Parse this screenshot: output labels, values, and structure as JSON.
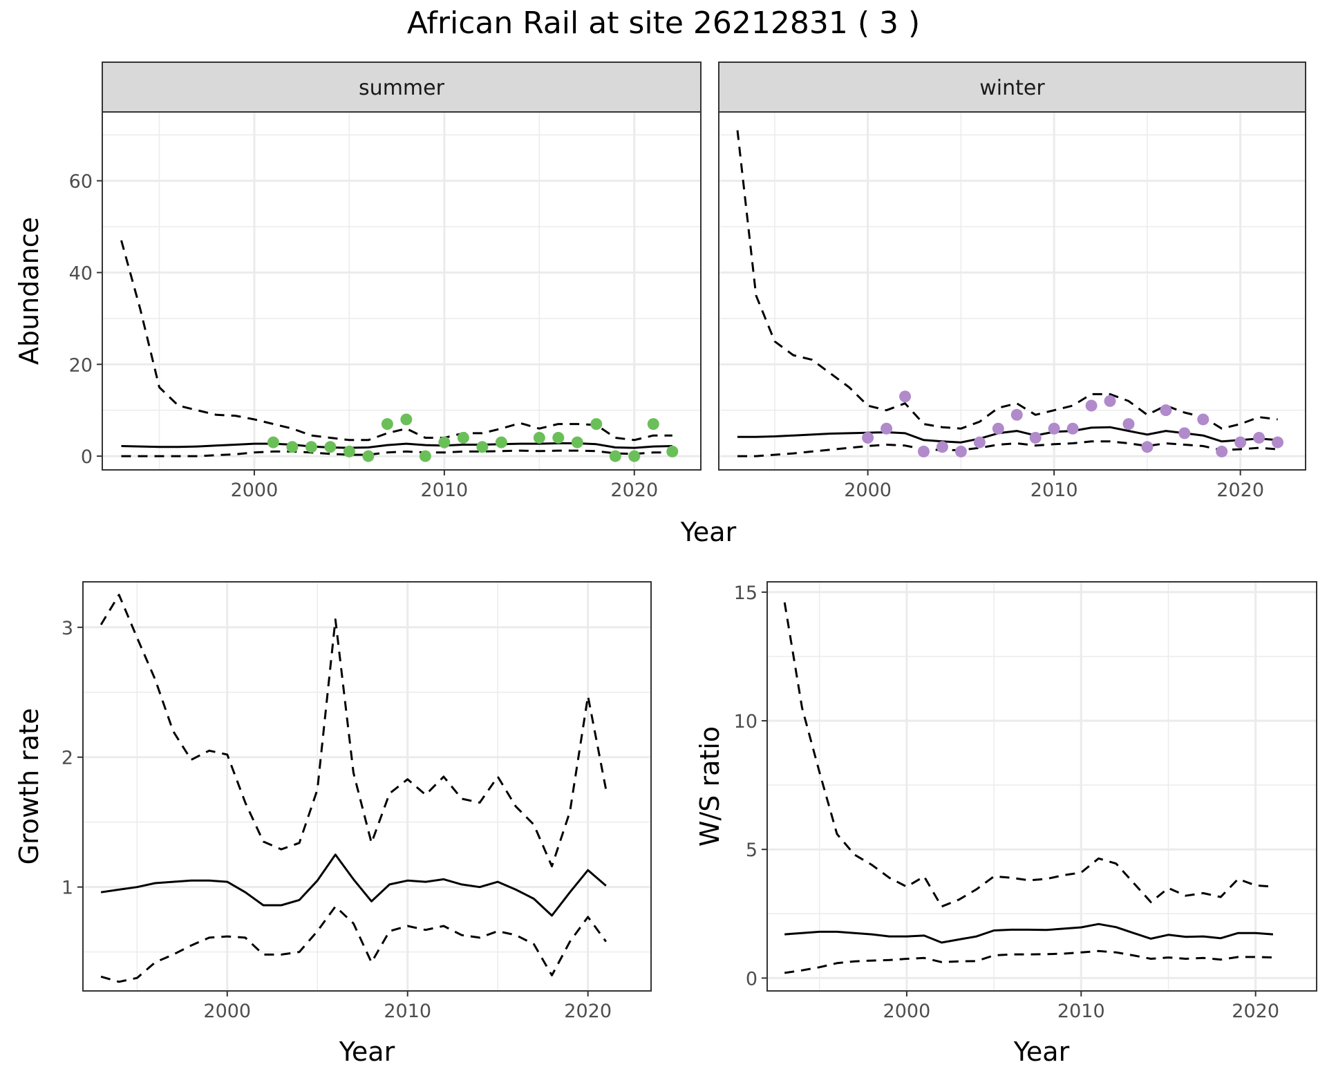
{
  "title": "African Rail at site 26212831 ( 3 )",
  "colors": {
    "summer_points": "#6bbf59",
    "winter_points": "#b08acb",
    "line": "#000000",
    "grid": "#ebebeb",
    "strip_fill": "#d9d9d9",
    "panel_border": "#333333"
  },
  "chart_data": [
    {
      "type": "line",
      "panel": "summer",
      "strip_label": "summer",
      "xlabel": "Year",
      "ylabel": "Abundance",
      "xlim": [
        1992,
        2023.5
      ],
      "ylim": [
        -3,
        75
      ],
      "x_ticks": [
        2000,
        2010,
        2020
      ],
      "y_ticks": [
        0,
        20,
        40,
        60
      ],
      "grid": true,
      "x": [
        1993,
        1994,
        1995,
        1996,
        1997,
        1998,
        1999,
        2000,
        2001,
        2002,
        2003,
        2004,
        2005,
        2006,
        2007,
        2008,
        2009,
        2010,
        2011,
        2012,
        2013,
        2014,
        2015,
        2016,
        2017,
        2018,
        2019,
        2020,
        2021,
        2022
      ],
      "series": [
        {
          "role": "estimate",
          "style": "solid",
          "values": [
            2.2,
            2.1,
            2.0,
            2.0,
            2.1,
            2.3,
            2.5,
            2.7,
            2.7,
            2.5,
            2.1,
            1.9,
            1.8,
            1.9,
            2.4,
            2.7,
            2.4,
            2.3,
            2.5,
            2.5,
            2.6,
            2.7,
            2.7,
            2.8,
            2.8,
            2.6,
            1.9,
            1.8,
            2.1,
            2.2
          ]
        },
        {
          "role": "upper",
          "style": "dashed",
          "values": [
            47,
            32,
            15,
            11,
            10,
            9,
            8.8,
            8,
            7,
            6,
            4.5,
            4,
            3.5,
            3.5,
            5,
            6,
            4,
            4,
            5,
            5,
            6,
            7.2,
            6,
            7,
            7,
            6.8,
            4,
            3.5,
            4.5,
            4.5
          ]
        },
        {
          "role": "lower",
          "style": "dashed",
          "values": [
            0,
            0,
            0,
            0,
            0,
            0.2,
            0.4,
            0.8,
            1.0,
            1.0,
            0.8,
            0.5,
            0.3,
            0.3,
            0.8,
            1.0,
            0.8,
            0.8,
            1.0,
            1.0,
            1.1,
            1.2,
            1.1,
            1.2,
            1.2,
            1.1,
            0.6,
            0.5,
            0.8,
            0.8
          ]
        }
      ],
      "observed": {
        "x": [
          2001,
          2002,
          2003,
          2004,
          2005,
          2006,
          2007,
          2008,
          2009,
          2010,
          2011,
          2012,
          2013,
          2015,
          2016,
          2017,
          2018,
          2019,
          2020,
          2021,
          2022
        ],
        "values": [
          3,
          2,
          2,
          2,
          1,
          0,
          7,
          8,
          0,
          3,
          4,
          2,
          3,
          4,
          4,
          3,
          7,
          0,
          0,
          7,
          1
        ]
      }
    },
    {
      "type": "line",
      "panel": "winter",
      "strip_label": "winter",
      "xlabel": "Year",
      "ylabel": "Abundance",
      "xlim": [
        1992,
        2023.5
      ],
      "ylim": [
        -3,
        75
      ],
      "x_ticks": [
        2000,
        2010,
        2020
      ],
      "y_ticks": [
        0,
        20,
        40,
        60
      ],
      "grid": true,
      "x": [
        1993,
        1994,
        1995,
        1996,
        1997,
        1998,
        1999,
        2000,
        2001,
        2002,
        2003,
        2004,
        2005,
        2006,
        2007,
        2008,
        2009,
        2010,
        2011,
        2012,
        2013,
        2014,
        2015,
        2016,
        2017,
        2018,
        2019,
        2020,
        2021,
        2022
      ],
      "series": [
        {
          "role": "estimate",
          "style": "solid",
          "values": [
            4.2,
            4.2,
            4.3,
            4.5,
            4.7,
            4.9,
            5.0,
            5.1,
            5.2,
            5.0,
            3.5,
            3.2,
            3.0,
            3.8,
            5.0,
            5.5,
            4.5,
            5.3,
            5.5,
            6.2,
            6.3,
            5.5,
            4.7,
            5.5,
            5.0,
            4.5,
            3.2,
            3.5,
            3.8,
            3.5
          ]
        },
        {
          "role": "upper",
          "style": "dashed",
          "values": [
            71,
            35,
            25,
            22,
            21,
            18,
            15,
            11,
            10,
            11.5,
            7,
            6.3,
            6,
            7.5,
            10.5,
            11.5,
            9,
            10,
            11,
            13.5,
            13.5,
            12,
            9,
            11,
            9.5,
            8.5,
            6,
            7,
            8.5,
            8
          ]
        },
        {
          "role": "lower",
          "style": "dashed",
          "values": [
            0,
            0,
            0.3,
            0.6,
            1.0,
            1.4,
            1.8,
            2.2,
            2.5,
            2.3,
            1.5,
            1.3,
            1.3,
            1.8,
            2.5,
            2.8,
            2.3,
            2.6,
            2.8,
            3.2,
            3.2,
            2.8,
            2.2,
            2.8,
            2.5,
            2.2,
            1.3,
            1.5,
            1.8,
            1.5
          ]
        }
      ],
      "observed": {
        "x": [
          2000,
          2001,
          2002,
          2003,
          2004,
          2005,
          2006,
          2007,
          2008,
          2009,
          2010,
          2011,
          2012,
          2013,
          2014,
          2015,
          2016,
          2017,
          2018,
          2019,
          2020,
          2021,
          2022
        ],
        "values": [
          4,
          6,
          13,
          1,
          2,
          1,
          3,
          6,
          9,
          4,
          6,
          6,
          11,
          12,
          7,
          2,
          10,
          5,
          8,
          1,
          3,
          4,
          3
        ]
      }
    },
    {
      "type": "line",
      "panel": "growth",
      "xlabel": "Year",
      "ylabel": "Growth rate",
      "xlim": [
        1992,
        2023.5
      ],
      "ylim": [
        0.2,
        3.35
      ],
      "x_ticks": [
        2000,
        2010,
        2020
      ],
      "y_ticks": [
        1,
        2,
        3
      ],
      "grid": true,
      "x": [
        1993,
        1994,
        1995,
        1996,
        1997,
        1998,
        1999,
        2000,
        2001,
        2002,
        2003,
        2004,
        2005,
        2006,
        2007,
        2008,
        2009,
        2010,
        2011,
        2012,
        2013,
        2014,
        2015,
        2016,
        2017,
        2018,
        2019,
        2020,
        2021
      ],
      "series": [
        {
          "role": "estimate",
          "style": "solid",
          "values": [
            0.96,
            0.98,
            1.0,
            1.03,
            1.04,
            1.05,
            1.05,
            1.04,
            0.96,
            0.86,
            0.86,
            0.9,
            1.05,
            1.25,
            1.06,
            0.89,
            1.02,
            1.05,
            1.04,
            1.06,
            1.02,
            1.0,
            1.04,
            0.98,
            0.91,
            0.78,
            0.96,
            1.13,
            1.01
          ]
        },
        {
          "role": "upper",
          "style": "dashed",
          "values": [
            3.02,
            3.25,
            2.92,
            2.6,
            2.2,
            1.98,
            2.05,
            2.02,
            1.65,
            1.35,
            1.29,
            1.34,
            1.75,
            3.06,
            1.88,
            1.34,
            1.72,
            1.83,
            1.71,
            1.85,
            1.68,
            1.65,
            1.85,
            1.62,
            1.48,
            1.16,
            1.58,
            2.47,
            1.75
          ]
        },
        {
          "role": "lower",
          "style": "dashed",
          "values": [
            0.31,
            0.27,
            0.3,
            0.42,
            0.48,
            0.55,
            0.61,
            0.62,
            0.61,
            0.48,
            0.48,
            0.5,
            0.66,
            0.85,
            0.72,
            0.42,
            0.66,
            0.7,
            0.67,
            0.7,
            0.63,
            0.61,
            0.66,
            0.63,
            0.56,
            0.32,
            0.58,
            0.77,
            0.58
          ]
        }
      ]
    },
    {
      "type": "line",
      "panel": "ratio",
      "xlabel": "Year",
      "ylabel": "W/S ratio",
      "xlim": [
        1992,
        2023.5
      ],
      "ylim": [
        -0.5,
        15.4
      ],
      "x_ticks": [
        2000,
        2010,
        2020
      ],
      "y_ticks": [
        0,
        5,
        10,
        15
      ],
      "grid": true,
      "x": [
        1993,
        1994,
        1995,
        1996,
        1997,
        1998,
        1999,
        2000,
        2001,
        2002,
        2003,
        2004,
        2005,
        2006,
        2007,
        2008,
        2009,
        2010,
        2011,
        2012,
        2013,
        2014,
        2015,
        2016,
        2017,
        2018,
        2019,
        2020,
        2021
      ],
      "series": [
        {
          "role": "estimate",
          "style": "solid",
          "values": [
            1.7,
            1.75,
            1.8,
            1.8,
            1.75,
            1.7,
            1.62,
            1.62,
            1.65,
            1.38,
            1.5,
            1.62,
            1.85,
            1.88,
            1.88,
            1.87,
            1.92,
            1.97,
            2.1,
            1.98,
            1.75,
            1.53,
            1.68,
            1.6,
            1.62,
            1.55,
            1.75,
            1.75,
            1.7
          ]
        },
        {
          "role": "upper",
          "style": "dashed",
          "values": [
            14.6,
            10.5,
            8,
            5.6,
            4.8,
            4.4,
            3.9,
            3.55,
            3.95,
            2.78,
            3.05,
            3.45,
            3.95,
            3.9,
            3.8,
            3.85,
            4.0,
            4.1,
            4.65,
            4.45,
            3.7,
            2.95,
            3.5,
            3.2,
            3.3,
            3.15,
            3.85,
            3.6,
            3.55
          ]
        },
        {
          "role": "lower",
          "style": "dashed",
          "values": [
            0.2,
            0.3,
            0.42,
            0.58,
            0.65,
            0.68,
            0.7,
            0.75,
            0.78,
            0.62,
            0.65,
            0.66,
            0.88,
            0.92,
            0.92,
            0.93,
            0.95,
            1.0,
            1.05,
            1.0,
            0.88,
            0.75,
            0.8,
            0.75,
            0.78,
            0.72,
            0.82,
            0.82,
            0.8
          ]
        }
      ]
    }
  ]
}
